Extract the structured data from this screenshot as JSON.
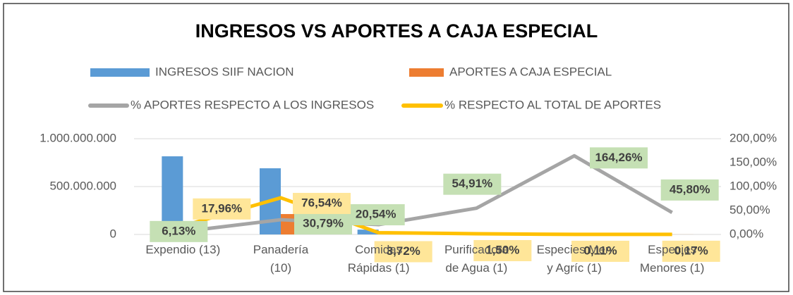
{
  "chart_data": {
    "type": "bar_line",
    "title": "INGRESOS VS APORTES A CAJA ESPECIAL",
    "categories": [
      "Expendio (13)",
      "Panadería (10)",
      "Comidas Rápidas (1)",
      "Purificadora de Agua (1)",
      "Especies Men y Agríc (1)",
      "Especies Menores (1)"
    ],
    "series": [
      {
        "name": "INGRESOS SIIF NACION",
        "color": "#5b9bd5",
        "kind": "bar",
        "values": [
          816000000,
          691000000,
          50400000,
          7600000,
          186000,
          1030000
        ]
      },
      {
        "name": "APORTES A CAJA ESPECIAL",
        "color": "#ed7d31",
        "kind": "bar",
        "values": [
          50000000,
          213000000,
          10400000,
          4170000,
          306000,
          473000
        ]
      },
      {
        "name": "% APORTES RESPECTO A LOS INGRESOS",
        "color": "#a5a5a5",
        "kind": "line",
        "axis": "y2",
        "label_bg": "#c5e0b4",
        "values": [
          6.13,
          30.79,
          20.54,
          54.91,
          164.26,
          45.8
        ],
        "value_labels": [
          "6,13%",
          "30,79%",
          "20,54%",
          "54,91%",
          "164,26%",
          "45,80%"
        ]
      },
      {
        "name": "% RESPECTO AL TOTAL DE APORTES",
        "color": "#ffc000",
        "kind": "line",
        "axis": "y2",
        "label_bg": "#ffe699",
        "values": [
          17.96,
          76.54,
          3.72,
          1.5,
          0.11,
          0.17
        ],
        "value_labels": [
          "17,96%",
          "76,54%",
          "3,72%",
          "1,50%",
          "0,11%",
          "0,17%"
        ]
      }
    ],
    "ylim": [
      0,
      1000000000
    ],
    "yticks": [
      0,
      {
        "value": 500000000,
        "label": "500.000.000"
      },
      {
        "value": 1000000000,
        "label": "1.000.000.000"
      }
    ],
    "y2lim": [
      0,
      200
    ],
    "y2ticks": [
      {
        "value": 0,
        "label": "0,00%"
      },
      {
        "value": 50,
        "label": "50,00%"
      },
      {
        "value": 100,
        "label": "100,00%"
      },
      {
        "value": 150,
        "label": "150,00%"
      },
      {
        "value": 200,
        "label": "200,00%"
      }
    ],
    "grid": true
  }
}
